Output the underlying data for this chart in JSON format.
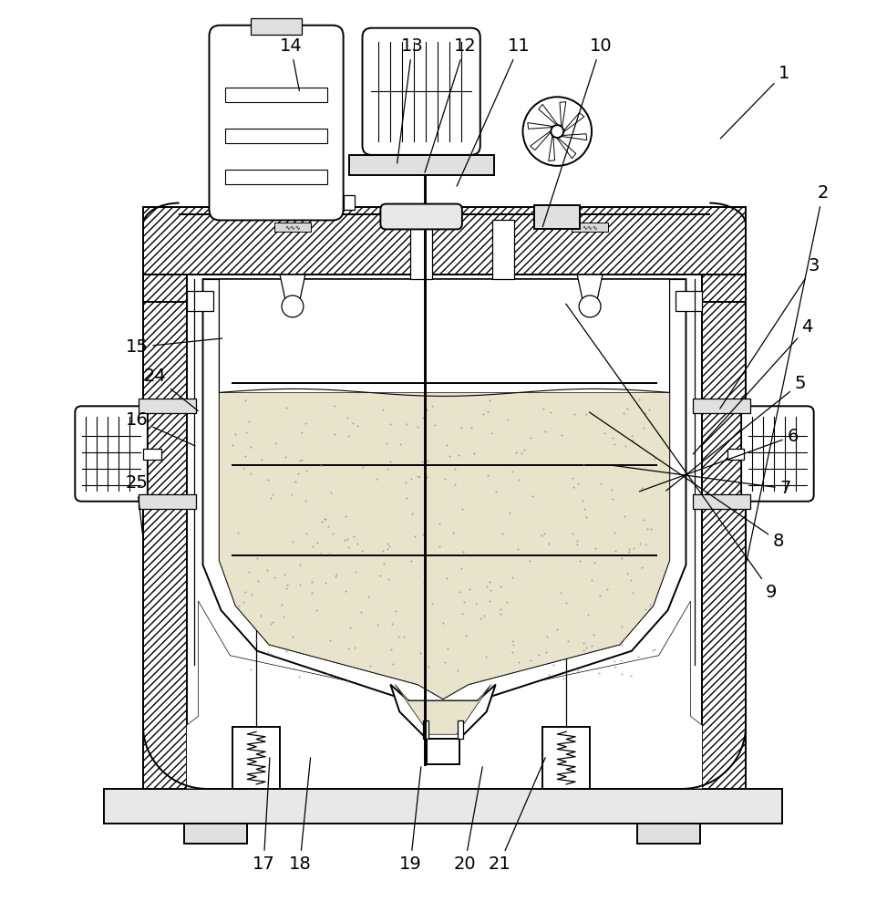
{
  "bg": "#ffffff",
  "lc": "#000000",
  "hatch_fc": "#ffffff",
  "fig_w": 9.73,
  "fig_h": 10.0,
  "dpi": 100,
  "labels": [
    [
      1,
      862,
      78,
      790,
      152
    ],
    [
      2,
      905,
      210,
      820,
      620
    ],
    [
      3,
      895,
      290,
      790,
      450
    ],
    [
      4,
      888,
      358,
      760,
      500
    ],
    [
      5,
      880,
      420,
      730,
      540
    ],
    [
      6,
      872,
      478,
      700,
      540
    ],
    [
      7,
      864,
      536,
      670,
      510
    ],
    [
      8,
      856,
      594,
      645,
      450
    ],
    [
      9,
      848,
      650,
      620,
      330
    ],
    [
      10,
      660,
      48,
      595,
      250
    ],
    [
      11,
      570,
      48,
      500,
      205
    ],
    [
      12,
      510,
      48,
      465,
      190
    ],
    [
      13,
      452,
      48,
      435,
      180
    ],
    [
      14,
      318,
      48,
      328,
      100
    ],
    [
      15,
      148,
      380,
      245,
      370
    ],
    [
      16,
      148,
      460,
      215,
      490
    ],
    [
      17,
      288,
      950,
      295,
      830
    ],
    [
      18,
      328,
      950,
      340,
      830
    ],
    [
      19,
      450,
      950,
      462,
      840
    ],
    [
      20,
      510,
      950,
      530,
      840
    ],
    [
      21,
      548,
      950,
      600,
      830
    ],
    [
      24,
      168,
      412,
      218,
      452
    ],
    [
      25,
      148,
      530,
      155,
      590
    ]
  ]
}
